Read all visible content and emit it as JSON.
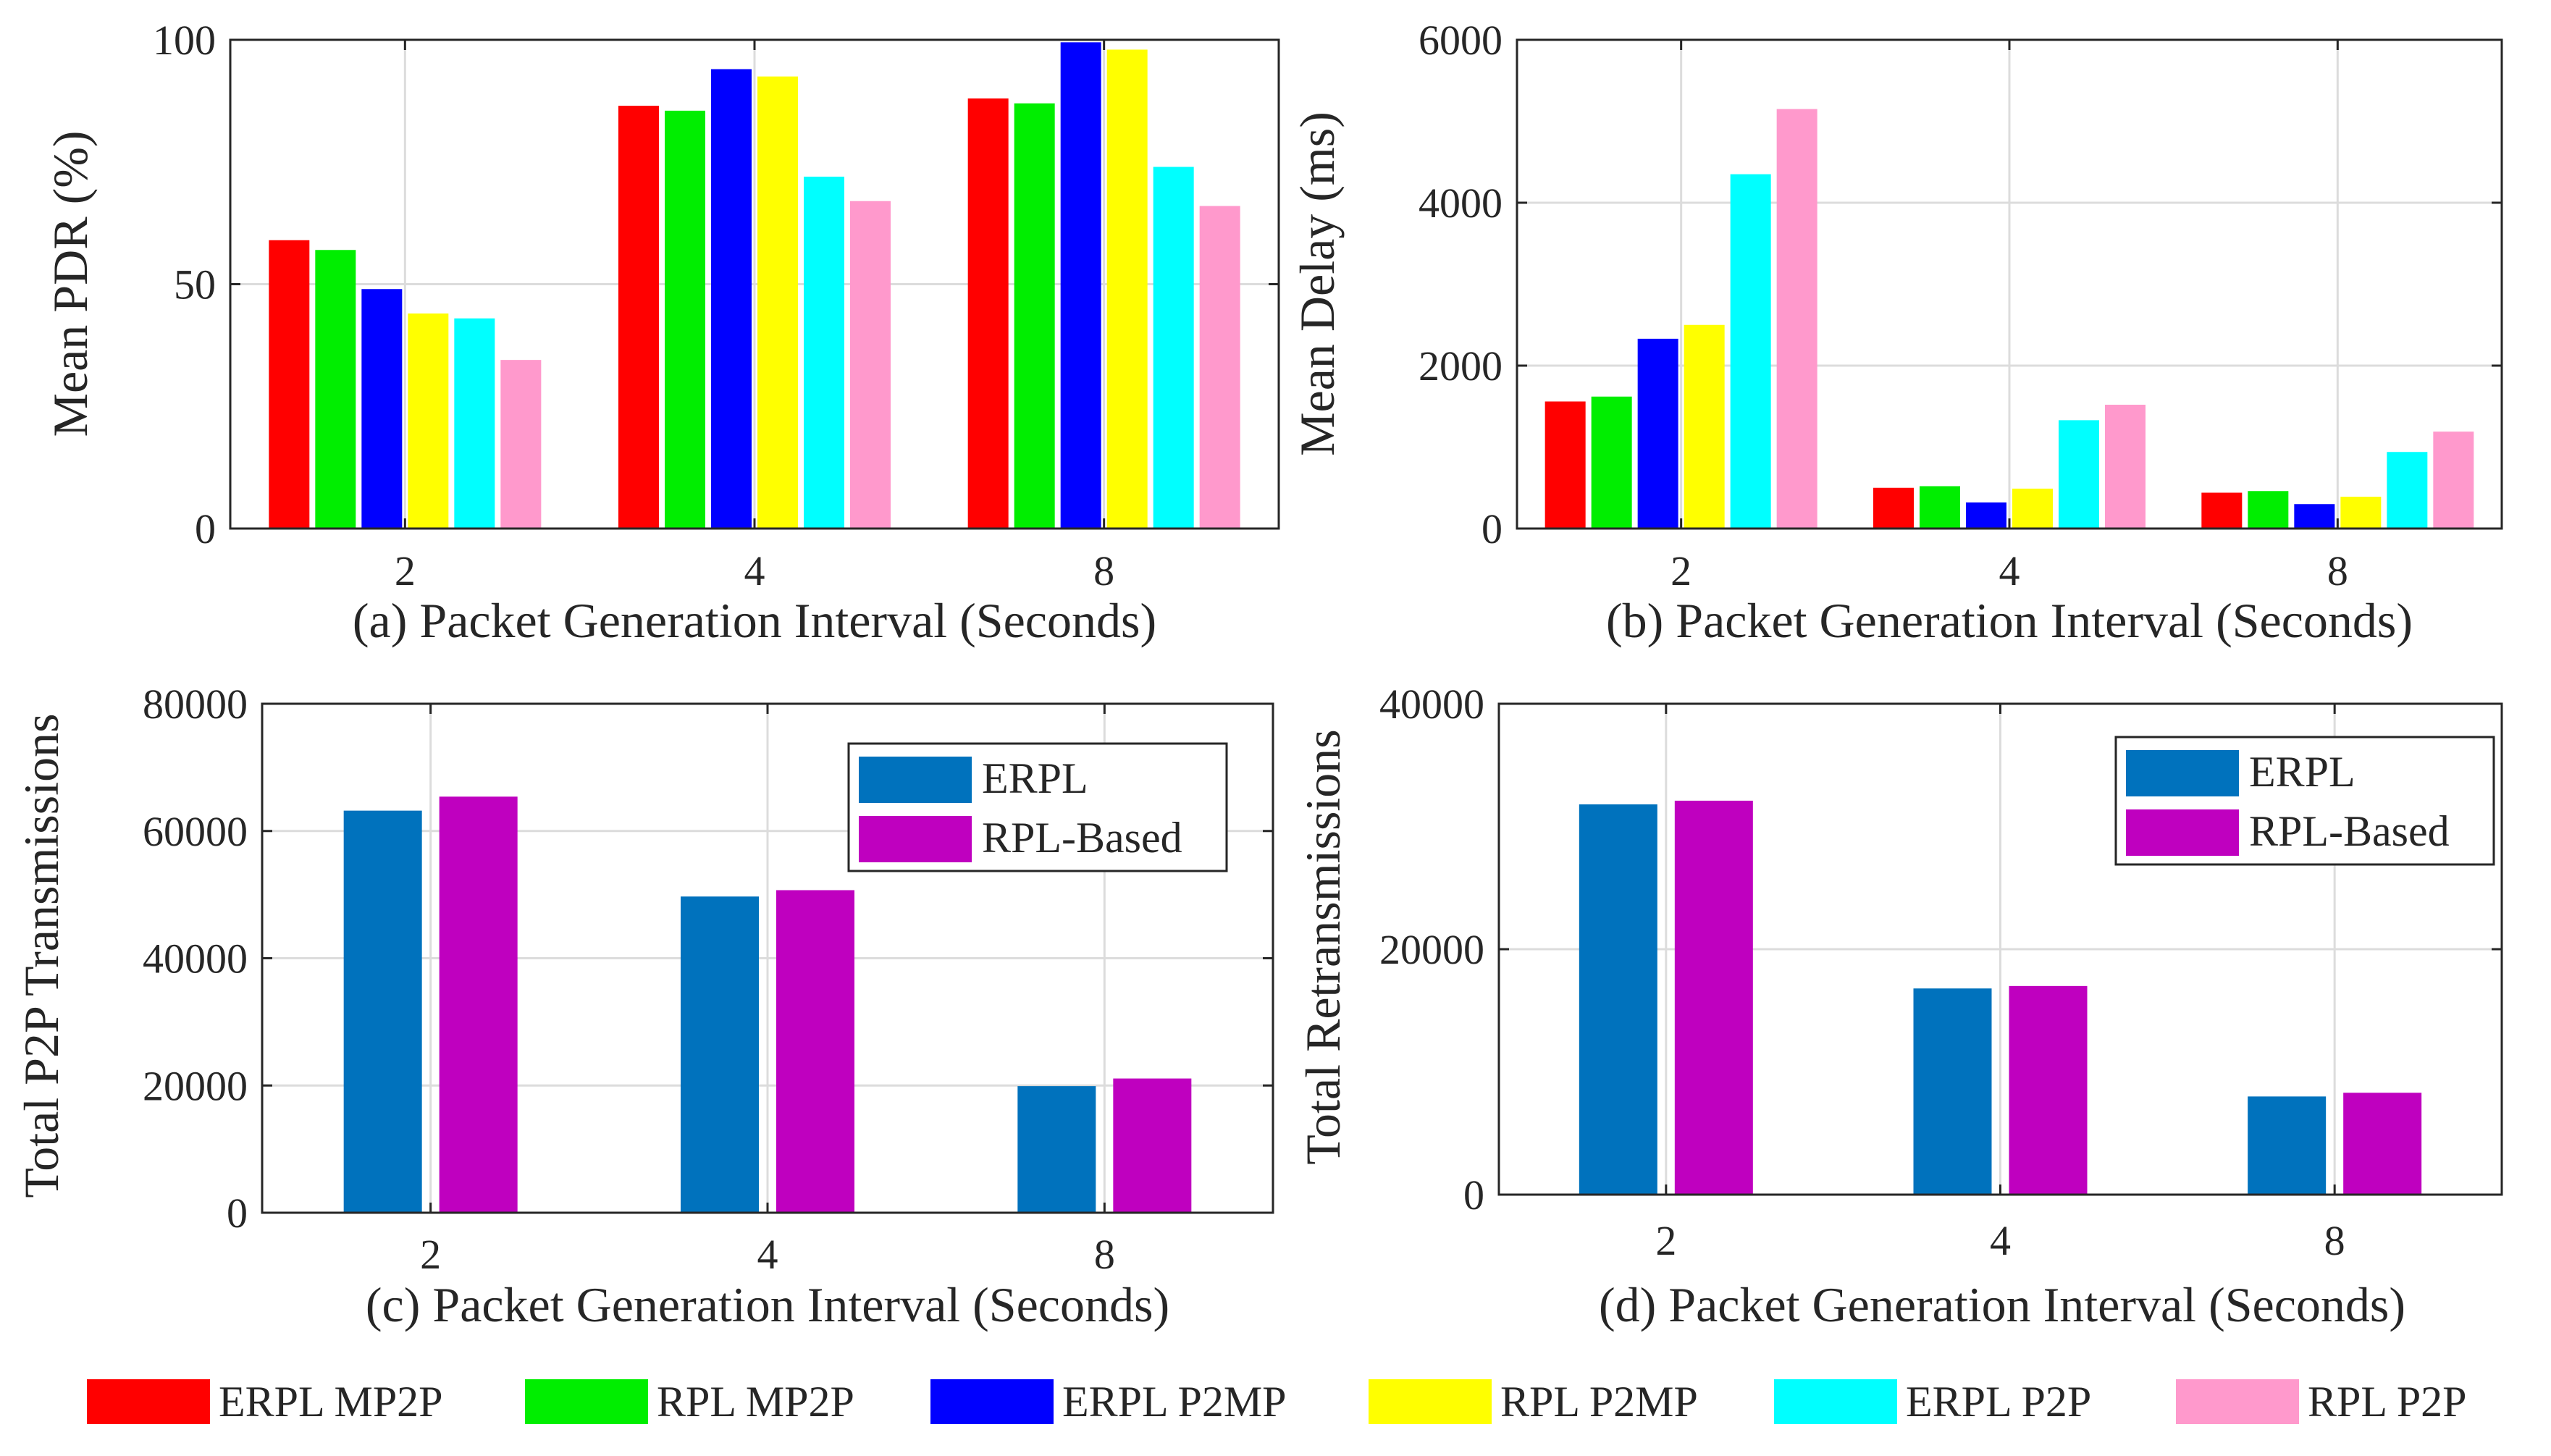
{
  "figure": {
    "colors": {
      "ERPL MP2P": "#ff0000",
      "RPL MP2P": "#00ee00",
      "ERPL P2MP": "#0000ff",
      "RPL P2MP": "#ffff00",
      "ERPL P2P": "#00ffff",
      "RPL P2P": "#ff99cc",
      "ERPL": "#0072bd",
      "RPL-Based": "#bf00bf"
    },
    "shared_legend": [
      "ERPL MP2P",
      "RPL MP2P",
      "ERPL P2MP",
      "RPL P2MP",
      "ERPL P2P",
      "RPL P2P"
    ]
  },
  "chart_data": [
    {
      "id": "a",
      "type": "bar",
      "caption": "(a) Packet Generation Interval (Seconds)",
      "ylabel": "Mean PDR (%)",
      "xlabel": "",
      "categories": [
        "2",
        "4",
        "8"
      ],
      "ylim": [
        0,
        100
      ],
      "yticks": [
        0,
        50,
        100
      ],
      "grid": true,
      "legend": "",
      "series": [
        {
          "name": "ERPL MP2P",
          "values": [
            59,
            86.5,
            88
          ]
        },
        {
          "name": "RPL MP2P",
          "values": [
            57,
            85.5,
            87
          ]
        },
        {
          "name": "ERPL P2MP",
          "values": [
            49,
            94,
            99.5
          ]
        },
        {
          "name": "RPL P2MP",
          "values": [
            44,
            92.5,
            98
          ]
        },
        {
          "name": "ERPL P2P",
          "values": [
            43,
            72,
            74
          ]
        },
        {
          "name": "RPL P2P",
          "values": [
            34.5,
            67,
            66
          ]
        }
      ]
    },
    {
      "id": "b",
      "type": "bar",
      "caption": "(b) Packet Generation Interval (Seconds)",
      "ylabel": "Mean Delay (ms)",
      "xlabel": "",
      "categories": [
        "2",
        "4",
        "8"
      ],
      "ylim": [
        0,
        6000
      ],
      "yticks": [
        0,
        2000,
        4000,
        6000
      ],
      "grid": true,
      "legend": "",
      "series": [
        {
          "name": "ERPL MP2P",
          "values": [
            1560,
            500,
            440
          ]
        },
        {
          "name": "RPL MP2P",
          "values": [
            1620,
            520,
            460
          ]
        },
        {
          "name": "ERPL P2MP",
          "values": [
            2330,
            320,
            300
          ]
        },
        {
          "name": "RPL P2MP",
          "values": [
            2500,
            490,
            390
          ]
        },
        {
          "name": "ERPL P2P",
          "values": [
            4350,
            1330,
            940
          ]
        },
        {
          "name": "RPL P2P",
          "values": [
            5150,
            1520,
            1190
          ]
        }
      ]
    },
    {
      "id": "c",
      "type": "bar",
      "caption": "(c) Packet Generation Interval (Seconds)",
      "ylabel": "Total P2P Transmissions",
      "xlabel": "",
      "categories": [
        "2",
        "4",
        "8"
      ],
      "ylim": [
        0,
        80000
      ],
      "yticks": [
        0,
        20000,
        40000,
        60000,
        80000
      ],
      "grid": true,
      "legend": "top-right",
      "series": [
        {
          "name": "ERPL",
          "values": [
            63200,
            49700,
            19900
          ]
        },
        {
          "name": "RPL-Based",
          "values": [
            65400,
            50700,
            21100
          ]
        }
      ]
    },
    {
      "id": "d",
      "type": "bar",
      "caption": "(d) Packet Generation Interval (Seconds)",
      "ylabel": "Total Retransmissions",
      "xlabel": "",
      "categories": [
        "2",
        "4",
        "8"
      ],
      "ylim": [
        0,
        40000
      ],
      "yticks": [
        0,
        20000,
        40000
      ],
      "grid": true,
      "legend": "top-right",
      "series": [
        {
          "name": "ERPL",
          "values": [
            31800,
            16800,
            8000
          ]
        },
        {
          "name": "RPL-Based",
          "values": [
            32100,
            17000,
            8300
          ]
        }
      ]
    }
  ]
}
